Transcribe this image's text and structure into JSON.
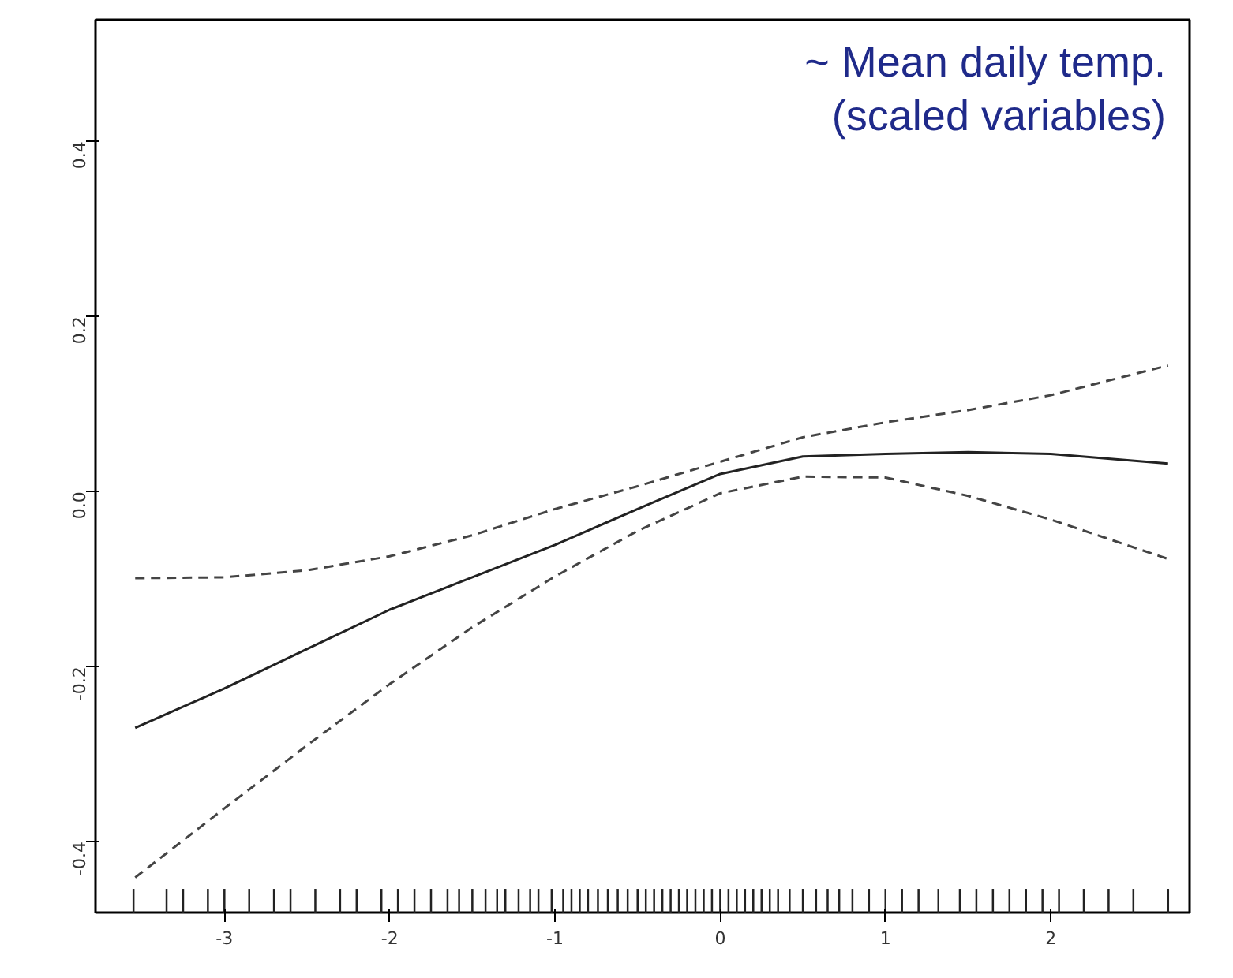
{
  "chart_data": {
    "type": "line",
    "annotations": [
      "~ Mean daily temp.",
      "(scaled variables)"
    ],
    "xlim": [
      -3.78,
      2.84
    ],
    "ylim": [
      -0.481,
      0.539
    ],
    "xticks": [
      -3,
      -2,
      -1,
      0,
      1,
      2
    ],
    "yticks": [
      -0.4,
      -0.2,
      {
        "value": 0,
        "label": "0.0"
      },
      0.2,
      0.4
    ],
    "grid": false,
    "series": [
      {
        "color": "#222222",
        "line_style": "solid",
        "x": [
          -3.54,
          -3,
          -2.5,
          -2,
          -1.5,
          -1,
          -0.5,
          0,
          0.5,
          1,
          1.5,
          2,
          2.71
        ],
        "values": [
          -0.27,
          -0.225,
          -0.18,
          -0.135,
          -0.098,
          -0.061,
          -0.02,
          0.02,
          0.04,
          0.043,
          0.045,
          0.043,
          0.032
        ]
      },
      {
        "color": "#444444",
        "line_style": "dashed",
        "x": [
          -3.54,
          -3,
          -2.5,
          -2,
          -1.5,
          -1,
          -0.5,
          0,
          0.5,
          1,
          1.5,
          2,
          2.71
        ],
        "values": [
          -0.099,
          -0.098,
          -0.09,
          -0.074,
          -0.05,
          -0.02,
          0.006,
          0.034,
          0.062,
          0.079,
          0.093,
          0.11,
          0.144
        ]
      },
      {
        "color": "#444444",
        "line_style": "dashed",
        "x": [
          -3.54,
          -3,
          -2.5,
          -2,
          -1.5,
          -1,
          -0.5,
          0,
          0.5,
          1,
          1.5,
          2,
          2.71
        ],
        "values": [
          -0.441,
          -0.362,
          -0.29,
          -0.22,
          -0.155,
          -0.097,
          -0.045,
          -0.002,
          0.017,
          0.016,
          -0.005,
          -0.032,
          -0.077
        ]
      },
      {
        "type": "bar",
        "color": "#222222",
        "x": [
          -3.55,
          -3.35,
          -3.25,
          -3.1,
          -3.0,
          -2.85,
          -2.7,
          -2.6,
          -2.45,
          -2.3,
          -2.2,
          -2.05,
          -1.95,
          -1.85,
          -1.75,
          -1.65,
          -1.58,
          -1.5,
          -1.42,
          -1.35,
          -1.3,
          -1.22,
          -1.15,
          -1.1,
          -1.02,
          -0.95,
          -0.9,
          -0.85,
          -0.8,
          -0.74,
          -0.68,
          -0.62,
          -0.56,
          -0.5,
          -0.45,
          -0.4,
          -0.35,
          -0.3,
          -0.25,
          -0.2,
          -0.15,
          -0.1,
          -0.05,
          0.0,
          0.05,
          0.1,
          0.15,
          0.2,
          0.25,
          0.3,
          0.35,
          0.42,
          0.5,
          0.58,
          0.65,
          0.72,
          0.8,
          0.9,
          1.0,
          1.1,
          1.2,
          1.32,
          1.45,
          1.55,
          1.65,
          1.75,
          1.85,
          1.95,
          2.05,
          2.2,
          2.35,
          2.5,
          2.71
        ],
        "base": [
          -0.481,
          -0.481,
          -0.481,
          -0.481,
          -0.481,
          -0.481,
          -0.481,
          -0.481,
          -0.481,
          -0.481,
          -0.481,
          -0.481,
          -0.481,
          -0.481,
          -0.481,
          -0.481,
          -0.481,
          -0.481,
          -0.481,
          -0.481,
          -0.481,
          -0.481,
          -0.481,
          -0.481,
          -0.481,
          -0.481,
          -0.481,
          -0.481,
          -0.481,
          -0.481,
          -0.481,
          -0.481,
          -0.481,
          -0.481,
          -0.481,
          -0.481,
          -0.481,
          -0.481,
          -0.481,
          -0.481,
          -0.481,
          -0.481,
          -0.481,
          -0.481,
          -0.481,
          -0.481,
          -0.481,
          -0.481,
          -0.481,
          -0.481,
          -0.481,
          -0.481,
          -0.481,
          -0.481,
          -0.481,
          -0.481,
          -0.481,
          -0.481,
          -0.481,
          -0.481,
          -0.481,
          -0.481,
          -0.481,
          -0.481,
          -0.481,
          -0.481,
          -0.481,
          -0.481,
          -0.481,
          -0.481,
          -0.481,
          -0.481,
          -0.481
        ],
        "values": [
          0.027,
          0.027,
          0.027,
          0.027,
          0.027,
          0.027,
          0.027,
          0.027,
          0.027,
          0.027,
          0.027,
          0.027,
          0.027,
          0.027,
          0.027,
          0.027,
          0.027,
          0.027,
          0.027,
          0.027,
          0.027,
          0.027,
          0.027,
          0.027,
          0.027,
          0.027,
          0.027,
          0.027,
          0.027,
          0.027,
          0.027,
          0.027,
          0.027,
          0.027,
          0.027,
          0.027,
          0.027,
          0.027,
          0.027,
          0.027,
          0.027,
          0.027,
          0.027,
          0.027,
          0.027,
          0.027,
          0.027,
          0.027,
          0.027,
          0.027,
          0.027,
          0.027,
          0.027,
          0.027,
          0.027,
          0.027,
          0.027,
          0.027,
          0.027,
          0.027,
          0.027,
          0.027,
          0.027,
          0.027,
          0.027,
          0.027,
          0.027,
          0.027,
          0.027,
          0.027,
          0.027,
          0.027,
          0.027
        ]
      }
    ]
  }
}
